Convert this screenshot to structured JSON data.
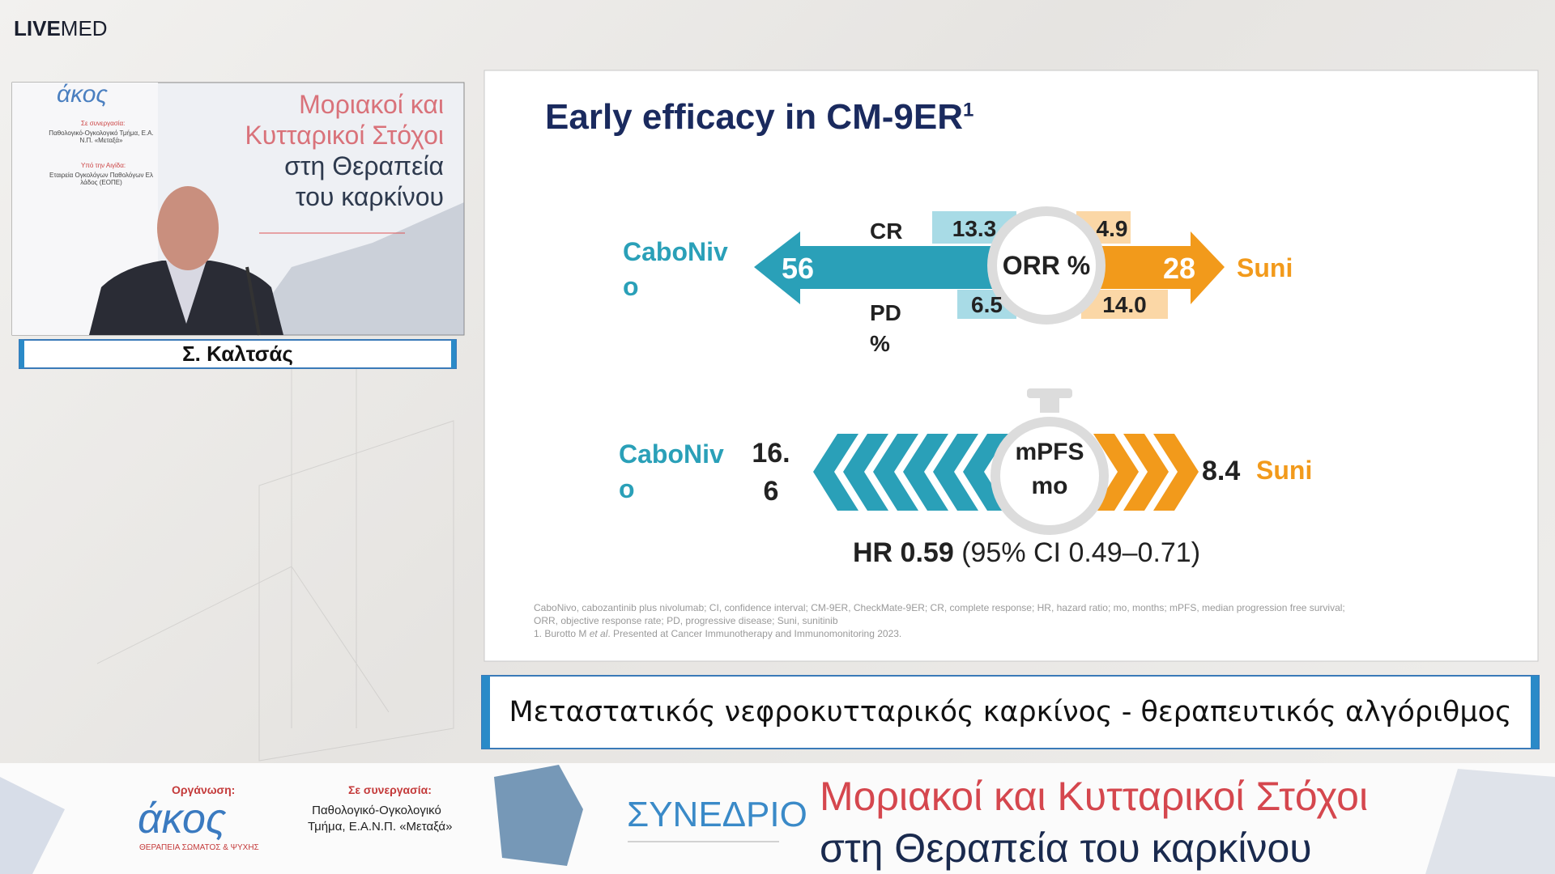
{
  "header": {
    "logo_bold": "LIVE",
    "logo_light": "MED"
  },
  "speaker": {
    "backdrop": {
      "logo": "άκος",
      "partner_label": "Σε συνεργασία:",
      "partner": "Παθολογικό-Ογκολογικό Τμήμα, Ε.Α.Ν.Π. «Μεταξά»",
      "support_label": "Υπό την Αιγίδα:",
      "support": "Εταιρεία Ογκολόγων Παθολόγων Ελλάδος (ΕΟΠΕ)",
      "title": [
        "Μοριακοί και",
        "Κυτταρικοί Στόχοι",
        "στη Θεραπεία",
        "του καρκίνου"
      ]
    },
    "name": "Σ. Καλτσάς"
  },
  "slide": {
    "title": "Early efficacy in CM-9ER",
    "title_sup": "1",
    "orr": {
      "left_label": "CaboNivo",
      "right_label": "Suni",
      "center": "ORR %",
      "left_value": "56",
      "right_value": "28",
      "cr_label": "CR",
      "pd_label": "PD %",
      "left_cr": "13.3",
      "right_cr": "4.9",
      "left_pd": "6.5",
      "right_pd": "14.0"
    },
    "pfs": {
      "left_label": "CaboNivo",
      "right_label": "Suni",
      "center": "mPFS mo",
      "left_value": "16.6",
      "right_value": "8.4"
    },
    "hr": {
      "bold": "HR 0.59",
      "rest": "(95% CI 0.49–0.71)"
    },
    "footnotes": {
      "line1": "CaboNivo, cabozantinib plus nivolumab; CI, confidence interval; CM-9ER, CheckMate-9ER; CR, complete response; HR, hazard ratio; mo, months; mPFS, median progression free survival;",
      "line2": "ORR, objective response rate; PD, progressive disease; Suni, sunitinib",
      "line3_a": "1. Burotto M ",
      "line3_b": "et al",
      "line3_c": ". Presented at Cancer Immunotherapy and Immunomonitoring 2023."
    }
  },
  "caption": "Μεταστατικός νεφροκυτταρικός καρκίνος - θεραπευτικός αλγόριθμος",
  "footer": {
    "org_label": "Οργάνωση:",
    "org_logo": "άκος",
    "org_sub": "ΘΕΡΑΠΕΙΑ ΣΩΜΑΤΟΣ & ΨΥΧΗΣ",
    "partner_label": "Σε συνεργασία:",
    "partner_lines": [
      "Παθολογικό-Ογκολογικό",
      "Τμήμα, Ε.Α.Ν.Π. «Μεταξά»"
    ],
    "event": "ΣΥΝΕΔΡΙΟ",
    "title_lines": [
      "Μοριακοί και Κυτταρικοί Στόχοι",
      "στη Θεραπεία του καρκίνου"
    ]
  }
}
